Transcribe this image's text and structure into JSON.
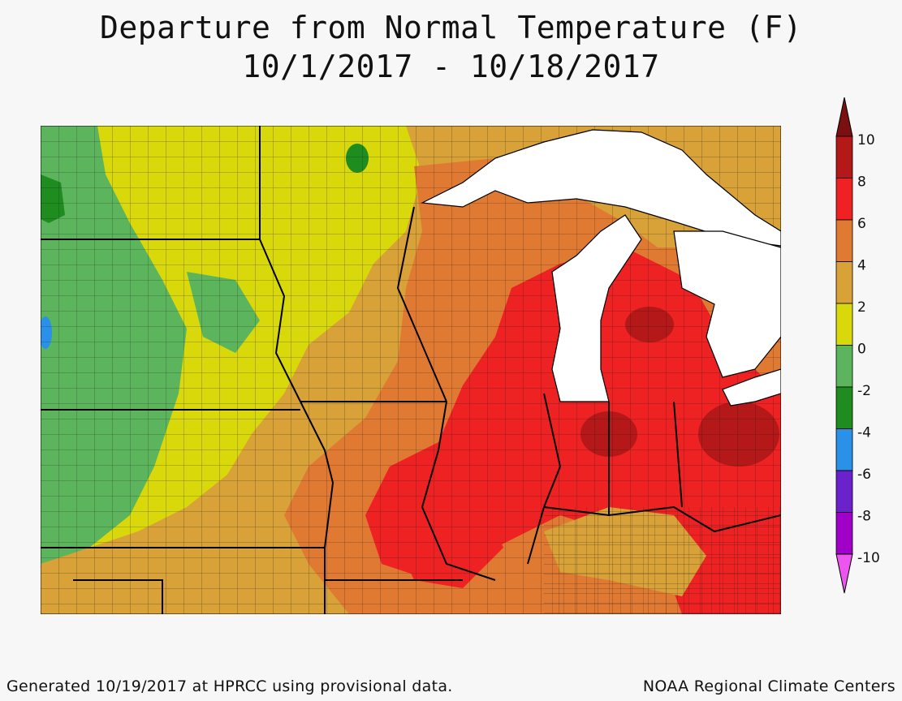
{
  "title": {
    "line1": "Departure from Normal Temperature (F)",
    "line2": "10/1/2017 - 10/18/2017"
  },
  "legend": {
    "labels": [
      "10",
      "8",
      "6",
      "4",
      "2",
      "0",
      "-2",
      "-4",
      "-6",
      "-8",
      "-10"
    ],
    "colors": [
      "#7a1010",
      "#b41818",
      "#ee2222",
      "#e07a32",
      "#d8a238",
      "#d8d80a",
      "#5cb55c",
      "#1e8c1e",
      "#2a90e8",
      "#6a22cc",
      "#a000c8",
      "#ee55ee"
    ]
  },
  "map": {
    "region": "Upper Midwest / Great Lakes",
    "anomaly_colors": {
      "minus2_to_0": "#5cb55c",
      "0_to_2": "#d8d80a",
      "2_to_4": "#d8a238",
      "4_to_6": "#e07a32",
      "6_to_8": "#ee2222",
      "8_to_10": "#b41818",
      "water": "#ffffff"
    }
  },
  "footer": {
    "left": "Generated 10/19/2017 at HPRCC using provisional data.",
    "right": "NOAA Regional Climate Centers"
  }
}
